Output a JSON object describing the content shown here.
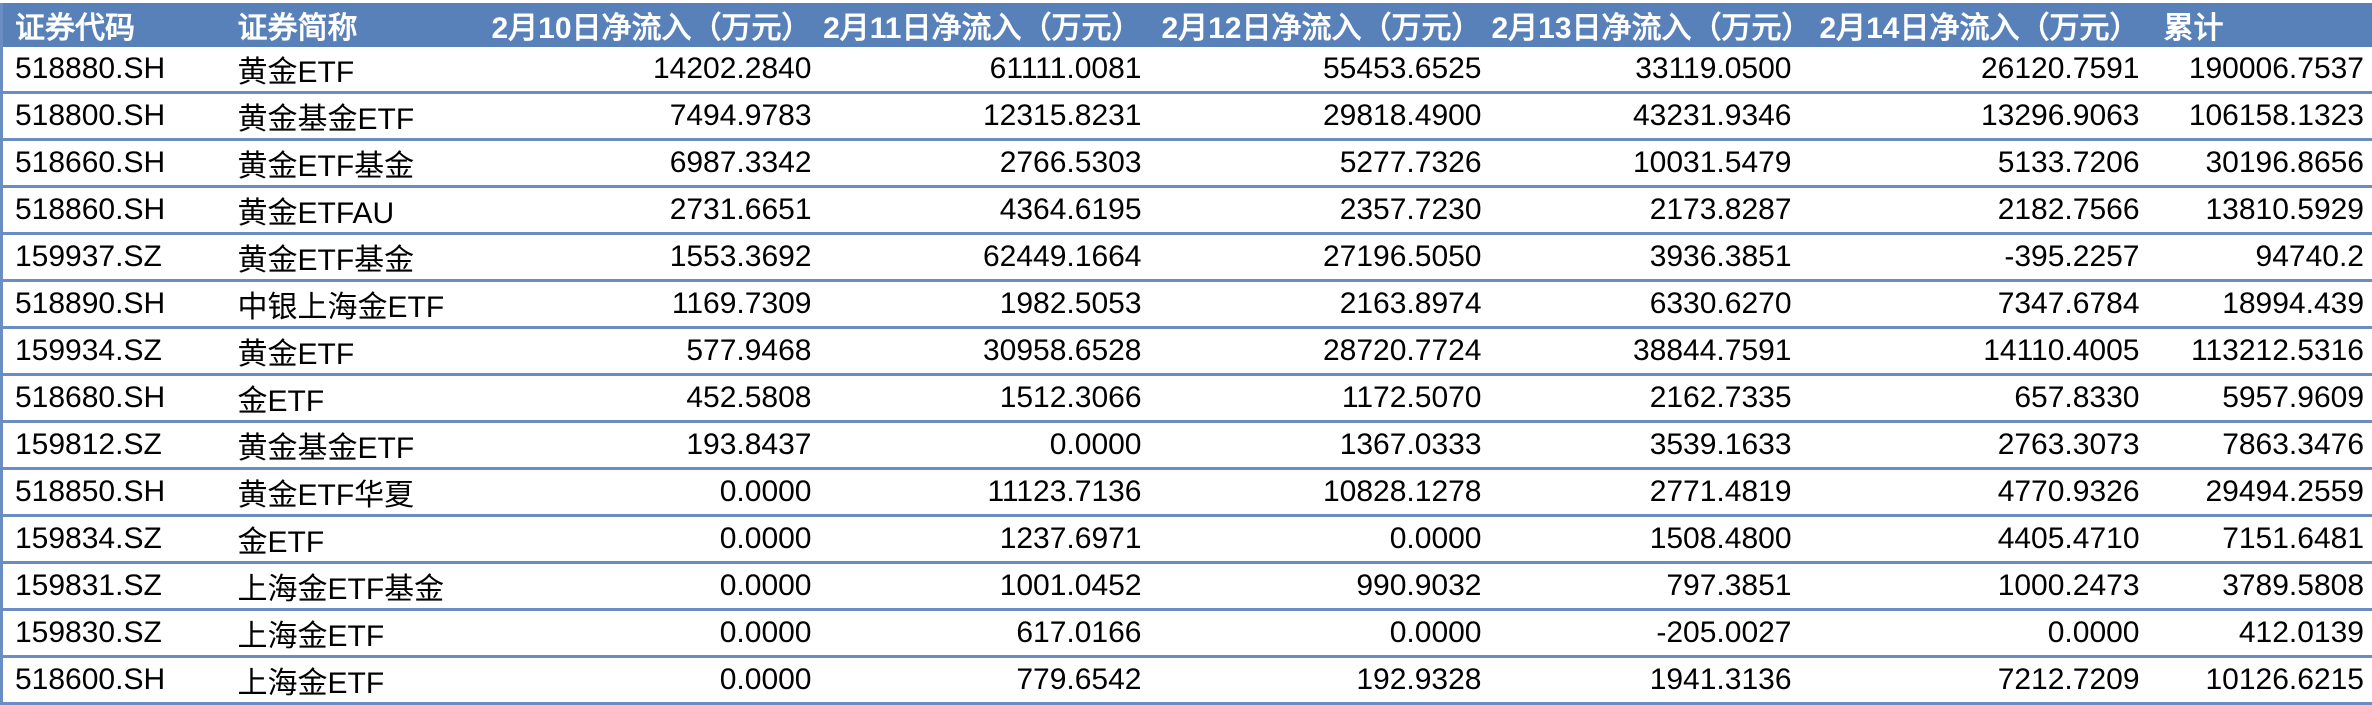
{
  "colors": {
    "header_bg": "#5881BA",
    "header_text": "#FFFFFF",
    "row_border": "#6A8DC4",
    "cell_text": "#000000"
  },
  "table": {
    "columns": [
      {
        "key": "code",
        "label": "证券代码"
      },
      {
        "key": "name",
        "label": "证券简称"
      },
      {
        "key": "d0210",
        "label": "2月10日净流入（万元）"
      },
      {
        "key": "d0211",
        "label": "2月11日净流入（万元）"
      },
      {
        "key": "d0212",
        "label": "2月12日净流入（万元）"
      },
      {
        "key": "d0213",
        "label": "2月13日净流入（万元）"
      },
      {
        "key": "d0214",
        "label": "2月14日净流入（万元）"
      },
      {
        "key": "total",
        "label": "累计"
      }
    ],
    "rows": [
      {
        "code": "518880.SH",
        "name": "黄金ETF",
        "d0210": "14202.2840",
        "d0211": "61111.0081",
        "d0212": "55453.6525",
        "d0213": "33119.0500",
        "d0214": "26120.7591",
        "total": "190006.7537"
      },
      {
        "code": "518800.SH",
        "name": "黄金基金ETF",
        "d0210": "7494.9783",
        "d0211": "12315.8231",
        "d0212": "29818.4900",
        "d0213": "43231.9346",
        "d0214": "13296.9063",
        "total": "106158.1323"
      },
      {
        "code": "518660.SH",
        "name": "黄金ETF基金",
        "d0210": "6987.3342",
        "d0211": "2766.5303",
        "d0212": "5277.7326",
        "d0213": "10031.5479",
        "d0214": "5133.7206",
        "total": "30196.8656"
      },
      {
        "code": "518860.SH",
        "name": "黄金ETFAU",
        "d0210": "2731.6651",
        "d0211": "4364.6195",
        "d0212": "2357.7230",
        "d0213": "2173.8287",
        "d0214": "2182.7566",
        "total": "13810.5929"
      },
      {
        "code": "159937.SZ",
        "name": "黄金ETF基金",
        "d0210": "1553.3692",
        "d0211": "62449.1664",
        "d0212": "27196.5050",
        "d0213": "3936.3851",
        "d0214": "-395.2257",
        "total": "94740.2"
      },
      {
        "code": "518890.SH",
        "name": "中银上海金ETF",
        "d0210": "1169.7309",
        "d0211": "1982.5053",
        "d0212": "2163.8974",
        "d0213": "6330.6270",
        "d0214": "7347.6784",
        "total": "18994.439"
      },
      {
        "code": "159934.SZ",
        "name": "黄金ETF",
        "d0210": "577.9468",
        "d0211": "30958.6528",
        "d0212": "28720.7724",
        "d0213": "38844.7591",
        "d0214": "14110.4005",
        "total": "113212.5316"
      },
      {
        "code": "518680.SH",
        "name": "金ETF",
        "d0210": "452.5808",
        "d0211": "1512.3066",
        "d0212": "1172.5070",
        "d0213": "2162.7335",
        "d0214": "657.8330",
        "total": "5957.9609"
      },
      {
        "code": "159812.SZ",
        "name": "黄金基金ETF",
        "d0210": "193.8437",
        "d0211": "0.0000",
        "d0212": "1367.0333",
        "d0213": "3539.1633",
        "d0214": "2763.3073",
        "total": "7863.3476"
      },
      {
        "code": "518850.SH",
        "name": "黄金ETF华夏",
        "d0210": "0.0000",
        "d0211": "11123.7136",
        "d0212": "10828.1278",
        "d0213": "2771.4819",
        "d0214": "4770.9326",
        "total": "29494.2559"
      },
      {
        "code": "159834.SZ",
        "name": "金ETF",
        "d0210": "0.0000",
        "d0211": "1237.6971",
        "d0212": "0.0000",
        "d0213": "1508.4800",
        "d0214": "4405.4710",
        "total": "7151.6481"
      },
      {
        "code": "159831.SZ",
        "name": "上海金ETF基金",
        "d0210": "0.0000",
        "d0211": "1001.0452",
        "d0212": "990.9032",
        "d0213": "797.3851",
        "d0214": "1000.2473",
        "total": "3789.5808"
      },
      {
        "code": "159830.SZ",
        "name": "上海金ETF",
        "d0210": "0.0000",
        "d0211": "617.0166",
        "d0212": "0.0000",
        "d0213": "-205.0027",
        "d0214": "0.0000",
        "total": "412.0139"
      },
      {
        "code": "518600.SH",
        "name": "上海金ETF",
        "d0210": "0.0000",
        "d0211": "779.6542",
        "d0212": "192.9328",
        "d0213": "1941.3136",
        "d0214": "7212.7209",
        "total": "10126.6215"
      }
    ]
  },
  "chart_data": {
    "type": "table",
    "columns": [
      "证券代码",
      "证券简称",
      "2月10日净流入（万元）",
      "2月11日净流入（万元）",
      "2月12日净流入（万元）",
      "2月13日净流入（万元）",
      "2月14日净流入（万元）",
      "累计"
    ],
    "rows": [
      [
        "518880.SH",
        "黄金ETF",
        14202.284,
        61111.0081,
        55453.6525,
        33119.05,
        26120.7591,
        190006.7537
      ],
      [
        "518800.SH",
        "黄金基金ETF",
        7494.9783,
        12315.8231,
        29818.49,
        43231.9346,
        13296.9063,
        106158.1323
      ],
      [
        "518660.SH",
        "黄金ETF基金",
        6987.3342,
        2766.5303,
        5277.7326,
        10031.5479,
        5133.7206,
        30196.8656
      ],
      [
        "518860.SH",
        "黄金ETFAU",
        2731.6651,
        4364.6195,
        2357.723,
        2173.8287,
        2182.7566,
        13810.5929
      ],
      [
        "159937.SZ",
        "黄金ETF基金",
        1553.3692,
        62449.1664,
        27196.505,
        3936.3851,
        -395.2257,
        94740.2
      ],
      [
        "518890.SH",
        "中银上海金ETF",
        1169.7309,
        1982.5053,
        2163.8974,
        6330.627,
        7347.6784,
        18994.439
      ],
      [
        "159934.SZ",
        "黄金ETF",
        577.9468,
        30958.6528,
        28720.7724,
        38844.7591,
        14110.4005,
        113212.5316
      ],
      [
        "518680.SH",
        "金ETF",
        452.5808,
        1512.3066,
        1172.507,
        2162.7335,
        657.833,
        5957.9609
      ],
      [
        "159812.SZ",
        "黄金基金ETF",
        193.8437,
        0.0,
        1367.0333,
        3539.1633,
        2763.3073,
        7863.3476
      ],
      [
        "518850.SH",
        "黄金ETF华夏",
        0.0,
        11123.7136,
        10828.1278,
        2771.4819,
        4770.9326,
        29494.2559
      ],
      [
        "159834.SZ",
        "金ETF",
        0.0,
        1237.6971,
        0.0,
        1508.48,
        4405.471,
        7151.6481
      ],
      [
        "159831.SZ",
        "上海金ETF基金",
        0.0,
        1001.0452,
        990.9032,
        797.3851,
        1000.2473,
        3789.5808
      ],
      [
        "159830.SZ",
        "上海金ETF",
        0.0,
        617.0166,
        0.0,
        -205.0027,
        0.0,
        412.0139
      ],
      [
        "518600.SH",
        "上海金ETF",
        0.0,
        779.6542,
        192.9328,
        1941.3136,
        7212.7209,
        10126.6215
      ]
    ]
  }
}
